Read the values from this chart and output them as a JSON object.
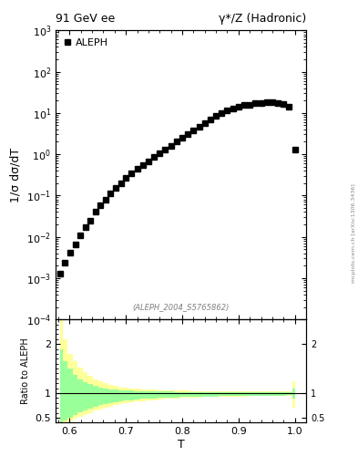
{
  "title_left": "91 GeV ee",
  "title_right": "γ*/Z (Hadronic)",
  "ylabel_main": "1/σ dσ/dT",
  "ylabel_ratio": "Ratio to ALEPH",
  "xlabel": "T",
  "watermark": "(ALEPH_2004_S5765862)",
  "side_label": "mcplots.cern.ch [arXiv:1306.3436]",
  "legend_label": "ALEPH",
  "xlim": [
    0.575,
    1.02
  ],
  "ylim_main": [
    0.0001,
    1000.0
  ],
  "ylim_ratio": [
    0.4,
    2.5
  ],
  "main_data_T": [
    0.583,
    0.592,
    0.601,
    0.61,
    0.619,
    0.628,
    0.637,
    0.646,
    0.655,
    0.664,
    0.673,
    0.682,
    0.691,
    0.7,
    0.71,
    0.72,
    0.73,
    0.74,
    0.75,
    0.76,
    0.77,
    0.78,
    0.79,
    0.8,
    0.81,
    0.82,
    0.83,
    0.84,
    0.85,
    0.86,
    0.87,
    0.88,
    0.89,
    0.9,
    0.91,
    0.92,
    0.93,
    0.94,
    0.95,
    0.96,
    0.97,
    0.98,
    0.99,
    1.0
  ],
  "main_data_y": [
    0.0013,
    0.0024,
    0.0042,
    0.0065,
    0.011,
    0.017,
    0.025,
    0.04,
    0.058,
    0.08,
    0.11,
    0.15,
    0.2,
    0.27,
    0.35,
    0.44,
    0.55,
    0.68,
    0.85,
    1.05,
    1.3,
    1.6,
    2.0,
    2.5,
    3.1,
    3.8,
    4.7,
    5.8,
    7.0,
    8.5,
    10.0,
    11.5,
    13.0,
    14.5,
    15.5,
    16.0,
    17.0,
    17.5,
    18.0,
    18.0,
    17.5,
    16.5,
    14.0,
    1.3
  ],
  "yellow_band_T": [
    0.583,
    0.592,
    0.601,
    0.61,
    0.619,
    0.628,
    0.637,
    0.646,
    0.655,
    0.664,
    0.673,
    0.682,
    0.691,
    0.7,
    0.71,
    0.72,
    0.73,
    0.74,
    0.75,
    0.76,
    0.77,
    0.78,
    0.79,
    0.8,
    0.81,
    0.82,
    0.83,
    0.84,
    0.85,
    0.86,
    0.87,
    0.88,
    0.89,
    0.9,
    0.91,
    0.92,
    0.93,
    0.94,
    0.95,
    0.96,
    0.97,
    0.98,
    0.99,
    1.0
  ],
  "yellow_upper": [
    2.5,
    2.1,
    1.8,
    1.65,
    1.52,
    1.43,
    1.35,
    1.28,
    1.24,
    1.2,
    1.17,
    1.14,
    1.12,
    1.11,
    1.1,
    1.09,
    1.08,
    1.07,
    1.07,
    1.06,
    1.06,
    1.05,
    1.05,
    1.05,
    1.05,
    1.04,
    1.04,
    1.04,
    1.04,
    1.04,
    1.04,
    1.04,
    1.04,
    1.04,
    1.04,
    1.04,
    1.04,
    1.04,
    1.04,
    1.04,
    1.04,
    1.04,
    1.04,
    1.25
  ],
  "yellow_lower": [
    0.33,
    0.38,
    0.43,
    0.48,
    0.52,
    0.56,
    0.6,
    0.64,
    0.67,
    0.7,
    0.73,
    0.75,
    0.77,
    0.79,
    0.81,
    0.83,
    0.84,
    0.85,
    0.86,
    0.87,
    0.88,
    0.88,
    0.89,
    0.9,
    0.9,
    0.91,
    0.91,
    0.92,
    0.92,
    0.92,
    0.93,
    0.93,
    0.93,
    0.93,
    0.93,
    0.94,
    0.94,
    0.94,
    0.94,
    0.94,
    0.94,
    0.94,
    0.95,
    0.7
  ],
  "green_upper": [
    1.9,
    1.65,
    1.5,
    1.38,
    1.28,
    1.22,
    1.18,
    1.14,
    1.12,
    1.1,
    1.08,
    1.07,
    1.06,
    1.05,
    1.05,
    1.04,
    1.04,
    1.03,
    1.03,
    1.03,
    1.03,
    1.03,
    1.02,
    1.02,
    1.02,
    1.02,
    1.02,
    1.02,
    1.02,
    1.02,
    1.02,
    1.02,
    1.02,
    1.02,
    1.02,
    1.02,
    1.02,
    1.02,
    1.02,
    1.02,
    1.02,
    1.02,
    1.02,
    1.1
  ],
  "green_lower": [
    0.38,
    0.44,
    0.5,
    0.56,
    0.61,
    0.65,
    0.69,
    0.72,
    0.75,
    0.77,
    0.8,
    0.82,
    0.83,
    0.85,
    0.86,
    0.87,
    0.88,
    0.89,
    0.89,
    0.9,
    0.9,
    0.91,
    0.91,
    0.92,
    0.92,
    0.92,
    0.93,
    0.93,
    0.93,
    0.93,
    0.94,
    0.94,
    0.94,
    0.94,
    0.94,
    0.95,
    0.95,
    0.95,
    0.95,
    0.95,
    0.95,
    0.95,
    0.96,
    0.88
  ],
  "marker_color": "black",
  "marker_size": 4,
  "yellow_color": "#ffff99",
  "green_color": "#99ff99",
  "main_xticks": [
    0.6,
    0.7,
    0.8,
    0.9,
    1.0
  ],
  "main_ytick_labels": [
    "10$^{-4}$",
    "10$^{-3}$",
    "10$^{-2}$",
    "10$^{-1}$",
    "1",
    "10",
    "10$^2$",
    "10$^3$"
  ]
}
